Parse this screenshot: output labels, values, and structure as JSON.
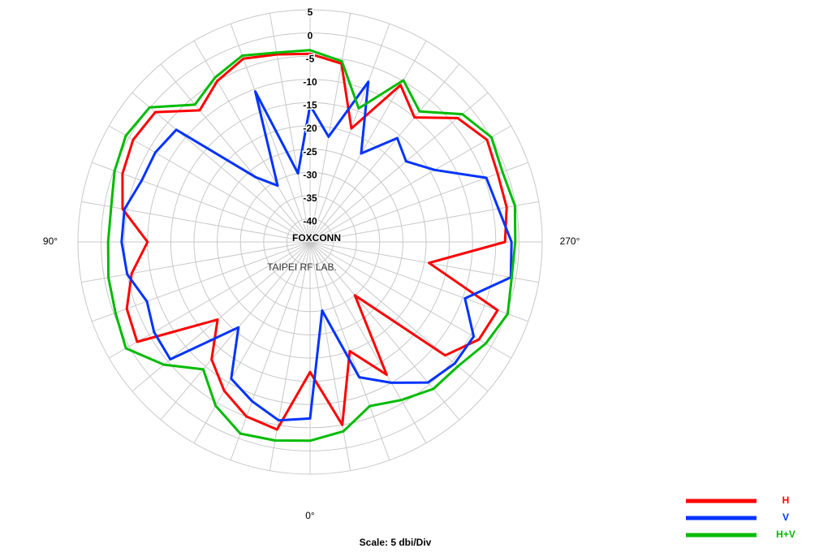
{
  "chart_data": {
    "type": "polar",
    "title": "Scale: 5 dbi/Div",
    "watermark": "FOXCONN",
    "watermark_sub": "TAIPEI RF LAB.",
    "rlim": [
      -45,
      5
    ],
    "rticks": [
      5,
      0,
      -5,
      -10,
      -15,
      -20,
      -25,
      -30,
      -35,
      -40
    ],
    "thetaticks": [
      {
        "value": 0,
        "label": "0°"
      },
      {
        "value": 90,
        "label": "90°"
      },
      {
        "value": 270,
        "label": "270°"
      }
    ],
    "grid": true,
    "legend": "lower right",
    "theta": [
      0,
      10,
      20,
      30,
      40,
      50,
      60,
      70,
      80,
      90,
      100,
      110,
      120,
      130,
      140,
      150,
      160,
      170,
      180,
      190,
      200,
      210,
      220,
      230,
      240,
      250,
      260,
      270,
      280,
      290,
      300,
      310,
      320,
      330,
      340,
      350
    ],
    "series": [
      {
        "name": "H",
        "color": "#ff0000",
        "values": [
          -17,
          -4,
          -5,
          -8,
          -12,
          -19,
          -2,
          -3,
          -6,
          -10,
          -4,
          -2,
          -1,
          -1.5,
          -8,
          -5,
          -3,
          -4,
          -4.5,
          -6,
          -19,
          -6,
          -10,
          -3.5,
          -1,
          -2,
          -2,
          -3,
          -19,
          -2,
          -3,
          -7,
          -30,
          -12,
          -20,
          -5
        ]
      },
      {
        "name": "V",
        "color": "#0033ff",
        "values": [
          -7,
          -6,
          -8.5,
          -11,
          -21,
          -5.7,
          -6.2,
          -7.6,
          -5,
          -4.4,
          -4.4,
          -6.4,
          -6.5,
          -7.4,
          -26.8,
          -31,
          -10.5,
          -30,
          -15.6,
          -22,
          -8.3,
          -23,
          -15.8,
          -18,
          -14,
          -4.6,
          -3.8,
          -1.6,
          -1.1,
          -9.5,
          -4.3,
          -4.3,
          -5.5,
          -10,
          -14,
          -30
        ]
      },
      {
        "name": "H+V",
        "color": "#00bb00",
        "values": [
          -2.2,
          -1.6,
          -1.1,
          -4.3,
          -9.2,
          -3.9,
          0.8,
          -0.4,
          -0.9,
          -1.5,
          -1.5,
          -0.2,
          0.8,
          0.1,
          -6.4,
          -4.1,
          -2.3,
          -3.6,
          -3.7,
          -5.5,
          -14.4,
          -4.8,
          -8.3,
          -2.2,
          0.1,
          -0.9,
          -0.2,
          -0.8,
          -0.9,
          0.3,
          -1.3,
          -3.4,
          -3.7,
          -5.7,
          -7.4,
          -3.6
        ]
      }
    ]
  }
}
